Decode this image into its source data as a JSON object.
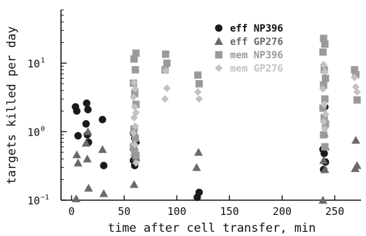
{
  "chart_data": {
    "type": "scatter",
    "title": "",
    "xlabel": "time after cell transfer, min",
    "ylabel": "targets killed per day",
    "x_scale": "linear",
    "y_scale": "log",
    "xlim": [
      -10,
      275
    ],
    "ylim": [
      0.1,
      60
    ],
    "x_ticks": [
      0,
      50,
      100,
      150,
      200,
      250
    ],
    "x_tick_labels": [
      "0",
      "50",
      "100",
      "150",
      "200",
      "250"
    ],
    "y_ticks": [
      0.1,
      1,
      10
    ],
    "y_tick_labels": [
      "10",
      "10",
      "10"
    ],
    "y_tick_exponents": [
      "−1",
      "0",
      "1"
    ],
    "grid": false,
    "legend_position": "top-right",
    "series": [
      {
        "name": "eff NP396",
        "marker": "circle",
        "color": "#1a1a1a",
        "points": [
          [
            5,
            2.3
          ],
          [
            5,
            2.0
          ],
          [
            5,
            0.87
          ],
          [
            15,
            2.6
          ],
          [
            15,
            2.1
          ],
          [
            15,
            1.3
          ],
          [
            15,
            0.9
          ],
          [
            15,
            0.7
          ],
          [
            30,
            1.5
          ],
          [
            30,
            0.32
          ],
          [
            60,
            0.95
          ],
          [
            60,
            0.8
          ],
          [
            60,
            0.7
          ],
          [
            60,
            0.55
          ],
          [
            60,
            0.45
          ],
          [
            60,
            0.38
          ],
          [
            60,
            0.32
          ],
          [
            120,
            0.13
          ],
          [
            120,
            0.11
          ],
          [
            240,
            2.3
          ],
          [
            240,
            0.55
          ],
          [
            240,
            0.48
          ],
          [
            240,
            0.36
          ],
          [
            240,
            0.28
          ]
        ]
      },
      {
        "name": "eff GP276",
        "marker": "triangle",
        "color": "#6a6a6a",
        "points": [
          [
            5,
            0.46
          ],
          [
            5,
            0.35
          ],
          [
            5,
            0.105
          ],
          [
            15,
            1.0
          ],
          [
            15,
            0.68
          ],
          [
            15,
            0.4
          ],
          [
            15,
            0.15
          ],
          [
            30,
            0.55
          ],
          [
            30,
            0.125
          ],
          [
            60,
            0.6
          ],
          [
            60,
            0.5
          ],
          [
            60,
            0.42
          ],
          [
            60,
            0.17
          ],
          [
            120,
            0.5
          ],
          [
            120,
            0.3
          ],
          [
            240,
            0.95
          ],
          [
            240,
            0.6
          ],
          [
            240,
            0.38
          ],
          [
            240,
            0.28
          ],
          [
            240,
            0.1
          ],
          [
            270,
            0.75
          ],
          [
            270,
            0.32
          ],
          [
            270,
            0.29
          ]
        ]
      },
      {
        "name": "mem NP396",
        "marker": "square",
        "color": "#9a9a9a",
        "points": [
          [
            60,
            14
          ],
          [
            60,
            11.5
          ],
          [
            60,
            8
          ],
          [
            60,
            5.1
          ],
          [
            60,
            3.6
          ],
          [
            60,
            2.5
          ],
          [
            60,
            1.1
          ],
          [
            60,
            0.8
          ],
          [
            60,
            0.6
          ],
          [
            60,
            0.5
          ],
          [
            60,
            0.45
          ],
          [
            90,
            13.5
          ],
          [
            90,
            10
          ],
          [
            90,
            8
          ],
          [
            120,
            6.7
          ],
          [
            120,
            5
          ],
          [
            240,
            23
          ],
          [
            240,
            19
          ],
          [
            240,
            14.5
          ],
          [
            240,
            8
          ],
          [
            240,
            6
          ],
          [
            240,
            4.8
          ],
          [
            240,
            3
          ],
          [
            240,
            2.2
          ],
          [
            240,
            1.6
          ],
          [
            240,
            1.3
          ],
          [
            240,
            0.9
          ],
          [
            240,
            0.6
          ],
          [
            270,
            8
          ],
          [
            270,
            6.8
          ],
          [
            270,
            2.9
          ]
        ]
      },
      {
        "name": "mem GP276",
        "marker": "diamond",
        "color": "#c2c2c2",
        "points": [
          [
            60,
            5.2
          ],
          [
            60,
            4.2
          ],
          [
            60,
            3.2
          ],
          [
            60,
            2.3
          ],
          [
            60,
            1.9
          ],
          [
            60,
            1.6
          ],
          [
            60,
            1.2
          ],
          [
            60,
            0.95
          ],
          [
            60,
            0.65
          ],
          [
            60,
            0.35
          ],
          [
            90,
            7.8
          ],
          [
            90,
            4.3
          ],
          [
            90,
            3.0
          ],
          [
            120,
            3.8
          ],
          [
            120,
            3.0
          ],
          [
            240,
            9.5
          ],
          [
            240,
            7.5
          ],
          [
            240,
            4.2
          ],
          [
            240,
            2.5
          ],
          [
            240,
            1.8
          ],
          [
            240,
            1.4
          ],
          [
            240,
            1.1
          ],
          [
            270,
            6.2
          ],
          [
            270,
            4.5
          ],
          [
            270,
            3.8
          ]
        ]
      }
    ]
  }
}
